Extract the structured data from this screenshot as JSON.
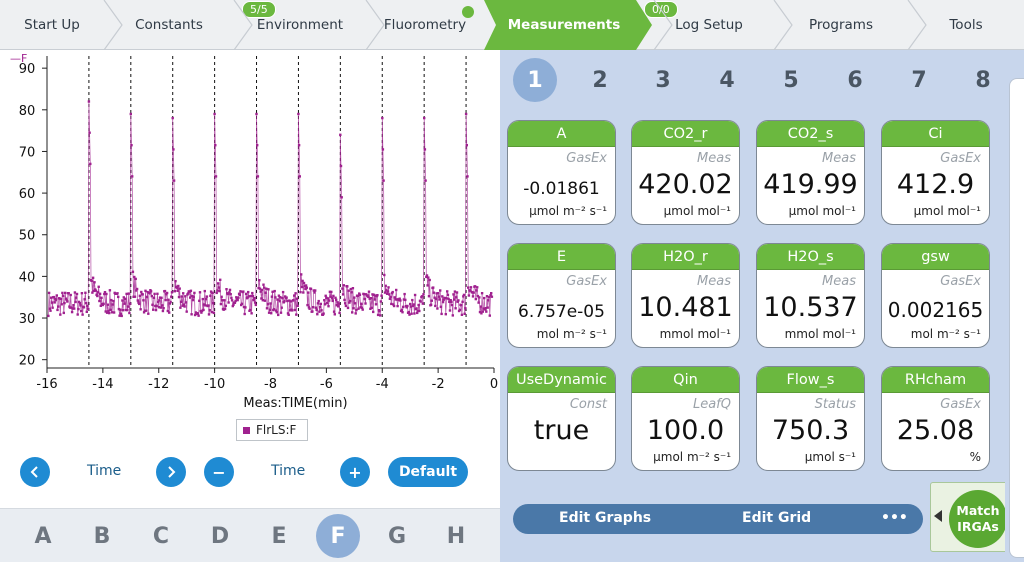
{
  "tabs": [
    {
      "label": "Start Up"
    },
    {
      "label": "Constants"
    },
    {
      "label": "Environment",
      "badge": "5/5"
    },
    {
      "label": "Fluorometry",
      "dot": true
    },
    {
      "label": "Measurements",
      "active": true
    },
    {
      "label": "Log Setup",
      "badge": "0/0"
    },
    {
      "label": "Programs"
    },
    {
      "label": "Tools"
    }
  ],
  "graph": {
    "legend": "FlrLS:F",
    "corner_label": "F",
    "x_controls": {
      "prev_icon": "chevron-left-icon",
      "label": "Time",
      "next_icon": "chevron-right-icon"
    },
    "y_controls": {
      "minus": "−",
      "label": "Time",
      "plus": "+"
    },
    "default_label": "Default",
    "letters": [
      "A",
      "B",
      "C",
      "D",
      "E",
      "F",
      "G",
      "H"
    ],
    "active_letter": "F"
  },
  "chart_data": {
    "type": "scatter",
    "xlabel": "Meas:TIME(min)",
    "ylabel": "F",
    "xlim": [
      -16,
      0
    ],
    "ylim": [
      18,
      91
    ],
    "xticks": [
      -16,
      -14,
      -12,
      -10,
      -8,
      -6,
      -4,
      -2,
      0
    ],
    "yticks": [
      20,
      30,
      40,
      50,
      60,
      70,
      80,
      90
    ],
    "grid": false,
    "legend_position": "bottom-center",
    "series": [
      {
        "name": "FlrLS:F",
        "color": "#a0218f",
        "baseline": 33.5,
        "noise": 3,
        "flash_times": [
          -14.5,
          -13.0,
          -11.5,
          -10.0,
          -8.5,
          -7.0,
          -5.5,
          -4.0,
          -2.5,
          -1.0
        ],
        "flash_peaks": [
          82,
          79,
          78,
          79,
          79,
          79,
          74,
          78,
          78,
          79
        ]
      }
    ]
  },
  "pages": [
    "1",
    "2",
    "3",
    "4",
    "5",
    "6",
    "7",
    "8"
  ],
  "active_page": "1",
  "cards": [
    {
      "name": "A",
      "group": "GasEx",
      "value": "-0.01861",
      "units": "µmol m⁻² s⁻¹",
      "size": "small"
    },
    {
      "name": "CO2_r",
      "group": "Meas",
      "value": "420.02",
      "units": "µmol mol⁻¹",
      "size": "big"
    },
    {
      "name": "CO2_s",
      "group": "Meas",
      "value": "419.99",
      "units": "µmol mol⁻¹",
      "size": "big"
    },
    {
      "name": "Ci",
      "group": "GasEx",
      "value": "412.9",
      "units": "µmol mol⁻¹",
      "size": "big"
    },
    {
      "name": "E",
      "group": "GasEx",
      "value": "6.757e-05",
      "units": "mol m⁻² s⁻¹",
      "size": "small"
    },
    {
      "name": "H2O_r",
      "group": "Meas",
      "value": "10.481",
      "units": "mmol mol⁻¹",
      "size": "big"
    },
    {
      "name": "H2O_s",
      "group": "Meas",
      "value": "10.537",
      "units": "mmol mol⁻¹",
      "size": "big"
    },
    {
      "name": "gsw",
      "group": "GasEx",
      "value": "0.002165",
      "units": "mol m⁻² s⁻¹",
      "size": "mid"
    },
    {
      "name": "UseDynamic",
      "group": "Const",
      "value": "true",
      "units": "",
      "size": "big"
    },
    {
      "name": "Qin",
      "group": "LeafQ",
      "value": "100.0",
      "units": "µmol m⁻² s⁻¹",
      "size": "big"
    },
    {
      "name": "Flow_s",
      "group": "Status",
      "value": "750.3",
      "units": "µmol s⁻¹",
      "size": "big"
    },
    {
      "name": "RHcham",
      "group": "GasEx",
      "value": "25.08",
      "units": "%",
      "size": "big"
    }
  ],
  "actions": {
    "edit_graphs": "Edit Graphs",
    "edit_grid": "Edit Grid",
    "more": "•••"
  },
  "match": {
    "label": "Match IRGAs",
    "icon": "triangle-left-icon"
  },
  "colors": {
    "green": "#6bb83f",
    "blue": "#1f8bd3",
    "panel": "#c8d6ec",
    "trace": "#a0218f"
  }
}
